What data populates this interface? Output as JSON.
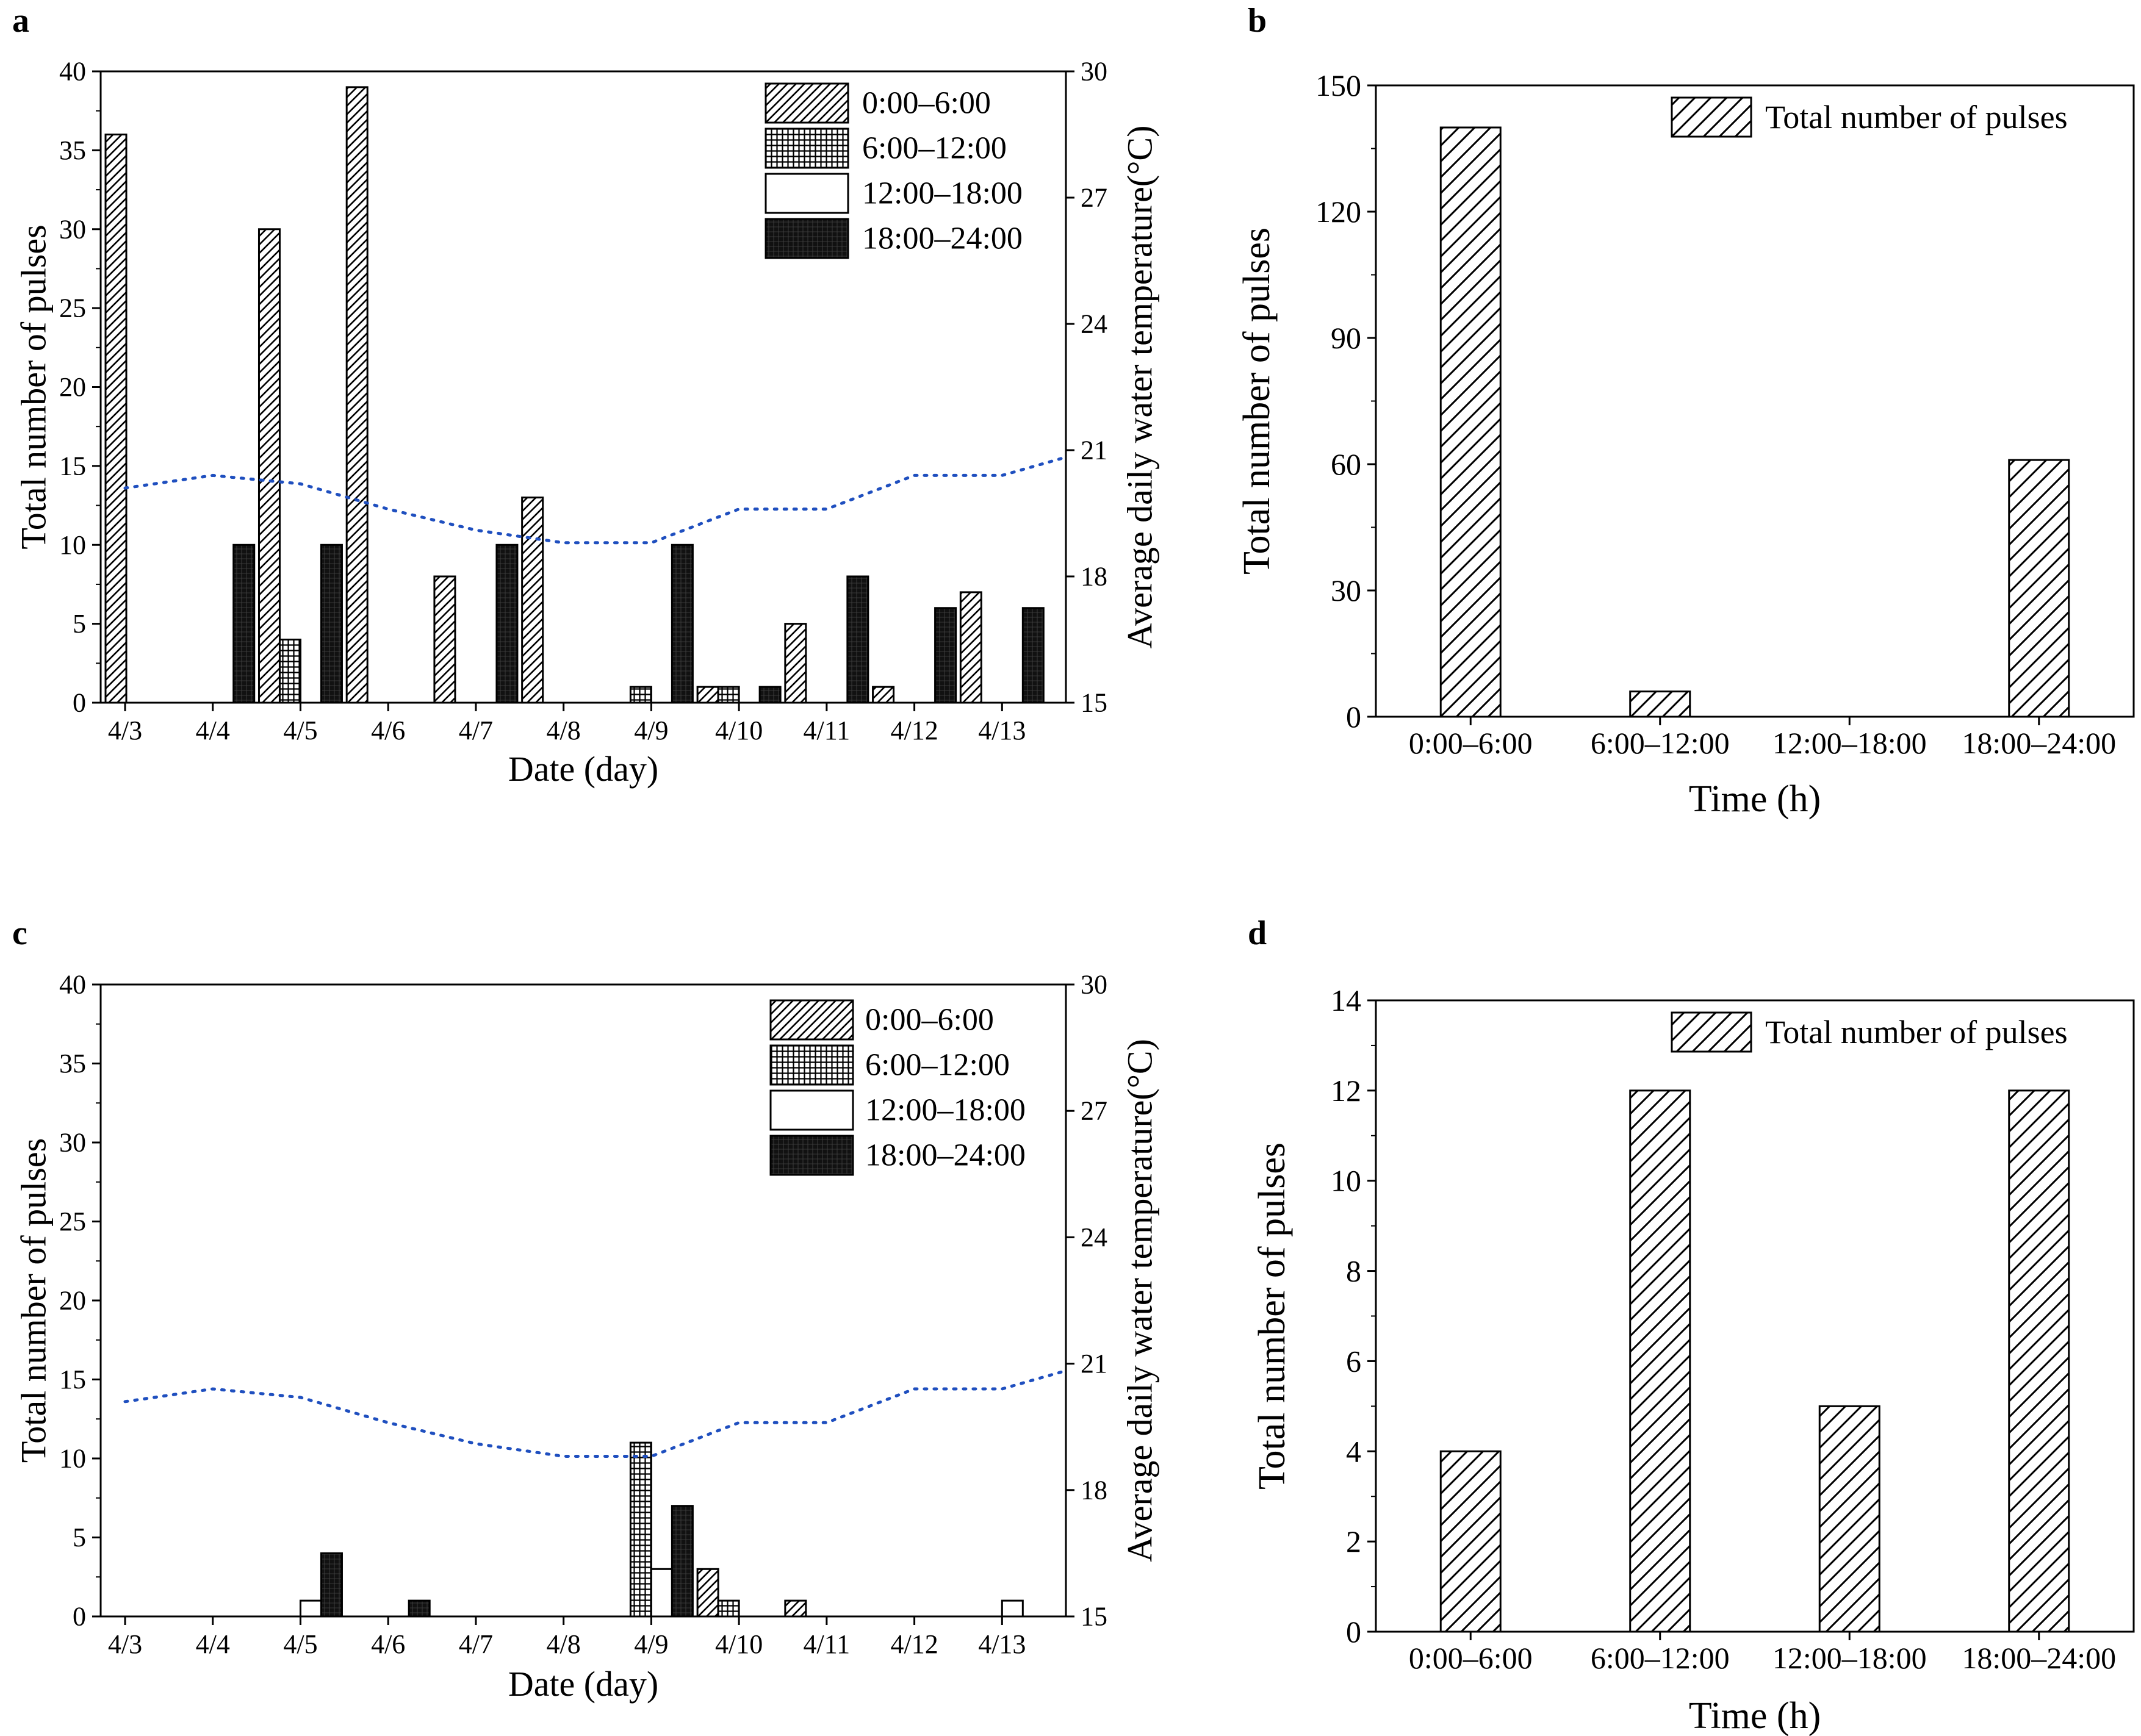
{
  "colors": {
    "axis": "#000000",
    "temperature_line": "#1f4fbf",
    "bar_fill_dark": "#111111",
    "background": "#ffffff"
  },
  "chart_data": [
    {
      "id": "a",
      "panel_label": "a",
      "type": "bar",
      "xlabel": "Date (day)",
      "ylabel": "Total number of pulses",
      "y2label": "Average daily water temperature(°C)",
      "categories": [
        "4/3",
        "4/4",
        "4/5",
        "4/6",
        "4/7",
        "4/8",
        "4/9",
        "4/10",
        "4/11",
        "4/12",
        "4/13"
      ],
      "ylim": [
        0,
        40
      ],
      "yticks": [
        0,
        5,
        10,
        15,
        20,
        25,
        30,
        35,
        40
      ],
      "y2lim": [
        15,
        30
      ],
      "y2ticks": [
        15,
        18,
        21,
        24,
        27,
        30
      ],
      "legend_position": "top-right",
      "series": [
        {
          "name": "0:00–6:00",
          "pattern": "hatch",
          "values": [
            36,
            0,
            30,
            39,
            8,
            13,
            0,
            1,
            5,
            1,
            7
          ]
        },
        {
          "name": "6:00–12:00",
          "pattern": "grid",
          "values": [
            0,
            0,
            4,
            0,
            0,
            0,
            1,
            1,
            0,
            0,
            0
          ]
        },
        {
          "name": "12:00–18:00",
          "pattern": "white",
          "values": [
            0,
            0,
            0,
            0,
            0,
            0,
            0,
            0,
            0,
            0,
            0
          ]
        },
        {
          "name": "18:00–24:00",
          "pattern": "dark",
          "values": [
            0,
            10,
            10,
            0,
            10,
            0,
            10,
            1,
            8,
            6,
            6
          ]
        }
      ],
      "temperature": {
        "style": "dotted",
        "x": [
          0,
          1,
          2,
          3,
          4,
          5,
          6,
          7,
          8,
          9,
          10,
          10.5
        ],
        "y": [
          20.1,
          20.4,
          20.2,
          19.6,
          19.1,
          18.8,
          18.8,
          19.6,
          19.6,
          20.4,
          20.4,
          20.8
        ]
      }
    },
    {
      "id": "b",
      "panel_label": "b",
      "type": "bar",
      "xlabel": "Time (h)",
      "ylabel": "Total number of pulses",
      "categories": [
        "0:00–6:00",
        "6:00–12:00",
        "12:00–18:00",
        "18:00–24:00"
      ],
      "ylim": [
        0,
        150
      ],
      "yticks": [
        0,
        30,
        60,
        90,
        120,
        150
      ],
      "legend_position": "top-right",
      "series": [
        {
          "name": "Total number of pulses",
          "pattern": "hatch",
          "values": [
            140,
            6,
            0,
            61
          ]
        }
      ]
    },
    {
      "id": "c",
      "panel_label": "c",
      "type": "bar",
      "xlabel": "Date (day)",
      "ylabel": "Total number of pulses",
      "y2label": "Average daily water temperature(°C)",
      "categories": [
        "4/3",
        "4/4",
        "4/5",
        "4/6",
        "4/7",
        "4/8",
        "4/9",
        "4/10",
        "4/11",
        "4/12",
        "4/13"
      ],
      "ylim": [
        0,
        40
      ],
      "yticks": [
        0,
        5,
        10,
        15,
        20,
        25,
        30,
        35,
        40
      ],
      "y2lim": [
        15,
        30
      ],
      "y2ticks": [
        15,
        18,
        21,
        24,
        27,
        30
      ],
      "legend_position": "top-right",
      "series": [
        {
          "name": "0:00–6:00",
          "pattern": "hatch",
          "values": [
            0,
            0,
            0,
            0,
            0,
            0,
            0,
            3,
            1,
            0,
            0
          ]
        },
        {
          "name": "6:00–12:00",
          "pattern": "grid",
          "values": [
            0,
            0,
            0,
            0,
            0,
            0,
            11,
            1,
            0,
            0,
            0
          ]
        },
        {
          "name": "12:00–18:00",
          "pattern": "white",
          "values": [
            0,
            0,
            1,
            0,
            0,
            0,
            3,
            0,
            0,
            0,
            1
          ]
        },
        {
          "name": "18:00–24:00",
          "pattern": "dark",
          "values": [
            0,
            0,
            4,
            1,
            0,
            0,
            7,
            0,
            0,
            0,
            0
          ]
        }
      ],
      "temperature": {
        "style": "dotted",
        "x": [
          0,
          1,
          2,
          3,
          4,
          5,
          6,
          7,
          8,
          9,
          10,
          10.5
        ],
        "y": [
          20.1,
          20.4,
          20.2,
          19.6,
          19.1,
          18.8,
          18.8,
          19.6,
          19.6,
          20.4,
          20.4,
          20.8
        ]
      }
    },
    {
      "id": "d",
      "panel_label": "d",
      "type": "bar",
      "xlabel": "Time (h)",
      "ylabel": "Total number of pulses",
      "categories": [
        "0:00–6:00",
        "6:00–12:00",
        "12:00–18:00",
        "18:00–24:00"
      ],
      "ylim": [
        0,
        14
      ],
      "yticks": [
        0,
        2,
        4,
        6,
        8,
        10,
        12,
        14
      ],
      "legend_position": "top-right",
      "series": [
        {
          "name": "Total number of pulses",
          "pattern": "hatch",
          "values": [
            4,
            12,
            5,
            12
          ]
        }
      ]
    }
  ]
}
